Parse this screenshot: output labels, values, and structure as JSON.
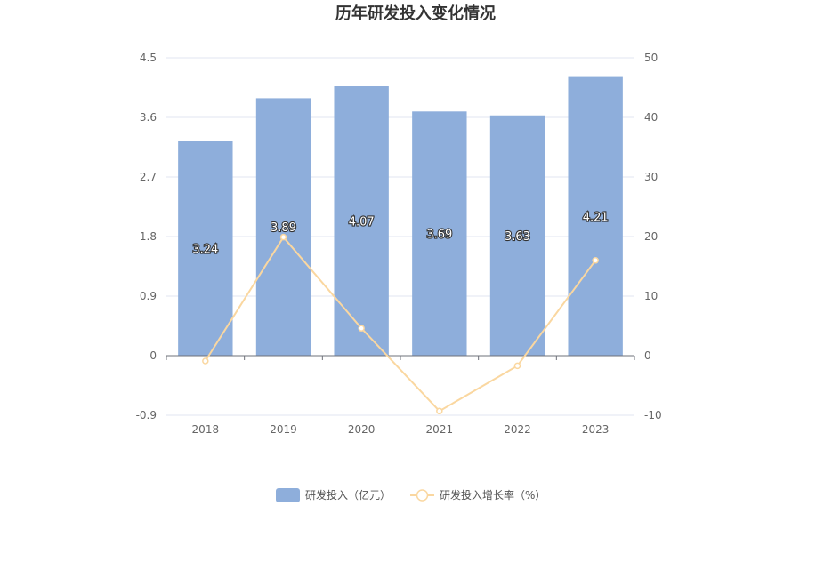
{
  "chart_data": {
    "type": "bar",
    "title": "历年研发投入变化情况",
    "categories": [
      "2018",
      "2019",
      "2020",
      "2021",
      "2022",
      "2023"
    ],
    "series": [
      {
        "name": "研发投入（亿元）",
        "type": "bar",
        "axis": "left",
        "values": [
          3.24,
          3.89,
          4.07,
          3.69,
          3.63,
          4.21
        ],
        "labels": [
          "3.24",
          "3.89",
          "4.07",
          "3.69",
          "3.63",
          "4.21"
        ],
        "color": "#8eaedb"
      },
      {
        "name": "研发投入增长率（%）",
        "type": "line",
        "axis": "right",
        "values": [
          -0.9,
          19.9,
          4.6,
          -9.3,
          -1.7,
          16.0
        ],
        "color": "#fad7a0"
      }
    ],
    "y_left": {
      "min": -0.9,
      "max": 4.5,
      "ticks": [
        "4.5",
        "3.6",
        "2.7",
        "1.8",
        "0.9",
        "0",
        "-0.9"
      ],
      "tick_values": [
        4.5,
        3.6,
        2.7,
        1.8,
        0.9,
        0,
        -0.9
      ]
    },
    "y_right": {
      "min": -10,
      "max": 50,
      "ticks": [
        "50",
        "40",
        "30",
        "20",
        "10",
        "0",
        "-10"
      ],
      "tick_values": [
        50,
        40,
        30,
        20,
        10,
        0,
        -10
      ]
    },
    "grid": true,
    "legend": "bottom-center"
  }
}
